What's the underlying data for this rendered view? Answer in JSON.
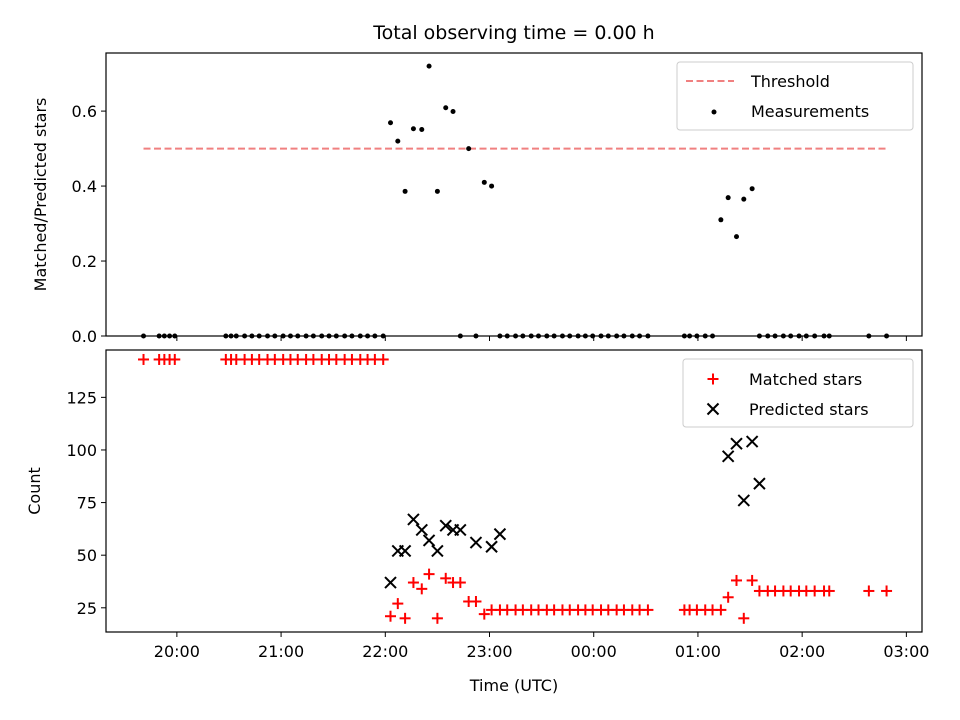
{
  "chart_data": [
    {
      "type": "scatter",
      "title": "Total observing time = 0.00 h",
      "xlabel": "",
      "ylabel": "Matched/Predicted stars",
      "x_unit": "hours after 20:00 UTC",
      "xlim": [
        -0.68,
        7.15
      ],
      "ylim": [
        0,
        0.755
      ],
      "yticks": [
        0.0,
        0.2,
        0.4,
        0.6
      ],
      "ytick_labels": [
        "0.0",
        "0.2",
        "0.4",
        "0.6"
      ],
      "legend": {
        "position": "upper right",
        "entries": [
          "Threshold",
          "Measurements"
        ]
      },
      "threshold": {
        "name": "Threshold",
        "y": 0.5,
        "x_start": -0.32,
        "x_end": 6.83,
        "color": "#f08080",
        "style": "dashed"
      },
      "series": [
        {
          "name": "Measurements",
          "color": "#000000",
          "x": [
            -0.32,
            -0.17,
            -0.12,
            -0.07,
            -0.02,
            0.47,
            0.52,
            0.57,
            0.65,
            0.72,
            0.79,
            0.87,
            0.94,
            1.02,
            1.09,
            1.16,
            1.24,
            1.31,
            1.39,
            1.46,
            1.53,
            1.61,
            1.68,
            1.76,
            1.83,
            1.9,
            1.98,
            2.05,
            2.12,
            2.19,
            2.27,
            2.35,
            2.42,
            2.5,
            2.58,
            2.65,
            2.72,
            2.8,
            2.87,
            2.95,
            3.02,
            3.1,
            3.17,
            3.25,
            3.32,
            3.4,
            3.47,
            3.55,
            3.62,
            3.7,
            3.77,
            3.85,
            3.92,
            3.99,
            4.07,
            4.14,
            4.22,
            4.29,
            4.37,
            4.44,
            4.52,
            4.87,
            4.92,
            4.99,
            5.07,
            5.14,
            5.22,
            5.29,
            5.37,
            5.44,
            5.52,
            5.59,
            5.67,
            5.74,
            5.82,
            5.89,
            5.97,
            6.04,
            6.12,
            6.21,
            6.26,
            6.64,
            6.81
          ],
          "y": [
            0,
            0,
            0,
            0,
            0,
            0,
            0,
            0,
            0,
            0,
            0,
            0,
            0,
            0,
            0,
            0,
            0,
            0,
            0,
            0,
            0,
            0,
            0,
            0,
            0,
            0,
            0,
            0.569,
            0.52,
            0.386,
            0.553,
            0.551,
            0.72,
            0.386,
            0.609,
            0.599,
            0,
            0.5,
            0,
            0.41,
            0.4,
            0,
            0,
            0,
            0,
            0,
            0,
            0,
            0,
            0,
            0,
            0,
            0,
            0,
            0,
            0,
            0,
            0,
            0,
            0,
            0,
            0,
            0,
            0,
            0,
            0,
            0.31,
            0.369,
            0.265,
            0.365,
            0.393,
            0,
            0,
            0,
            0,
            0,
            0,
            0,
            0,
            0,
            0,
            0,
            0
          ]
        }
      ]
    },
    {
      "type": "scatter",
      "title": "",
      "xlabel": "Time (UTC)",
      "ylabel": "Count",
      "x_unit": "hours after 20:00 UTC",
      "xlim": [
        -0.68,
        7.15
      ],
      "ylim": [
        13.5,
        147.5
      ],
      "xticks": [
        0,
        1,
        2,
        3,
        4,
        5,
        6,
        7
      ],
      "xtick_labels": [
        "20:00",
        "21:00",
        "22:00",
        "23:00",
        "00:00",
        "01:00",
        "02:00",
        "03:00"
      ],
      "yticks": [
        25,
        50,
        75,
        100,
        125
      ],
      "ytick_labels": [
        "25",
        "50",
        "75",
        "100",
        "125"
      ],
      "legend": {
        "position": "upper right",
        "entries": [
          "Matched stars",
          "Predicted stars"
        ]
      },
      "series": [
        {
          "name": "Matched stars",
          "marker": "+",
          "color": "#ff0000",
          "x": [
            -0.32,
            -0.17,
            -0.12,
            -0.07,
            -0.02,
            0.47,
            0.52,
            0.57,
            0.65,
            0.72,
            0.79,
            0.87,
            0.94,
            1.02,
            1.09,
            1.16,
            1.24,
            1.31,
            1.39,
            1.46,
            1.53,
            1.61,
            1.68,
            1.76,
            1.83,
            1.9,
            1.98,
            2.05,
            2.12,
            2.19,
            2.27,
            2.35,
            2.42,
            2.5,
            2.58,
            2.65,
            2.72,
            2.8,
            2.87,
            2.95,
            3.02,
            3.1,
            3.17,
            3.25,
            3.32,
            3.4,
            3.47,
            3.55,
            3.62,
            3.7,
            3.77,
            3.85,
            3.92,
            3.99,
            4.07,
            4.14,
            4.22,
            4.29,
            4.37,
            4.44,
            4.52,
            4.87,
            4.92,
            4.99,
            5.07,
            5.14,
            5.22,
            5.29,
            5.37,
            5.44,
            5.52,
            5.59,
            5.67,
            5.74,
            5.82,
            5.89,
            5.97,
            6.04,
            6.12,
            6.21,
            6.26,
            6.64,
            6.81
          ],
          "y": [
            143,
            143,
            143,
            143,
            143,
            143,
            143,
            143,
            143,
            143,
            143,
            143,
            143,
            143,
            143,
            143,
            143,
            143,
            143,
            143,
            143,
            143,
            143,
            143,
            143,
            143,
            143,
            21,
            27,
            20,
            37,
            34,
            41,
            20,
            39,
            37,
            37,
            28,
            28,
            22,
            24,
            24,
            24,
            24,
            24,
            24,
            24,
            24,
            24,
            24,
            24,
            24,
            24,
            24,
            24,
            24,
            24,
            24,
            24,
            24,
            24,
            24,
            24,
            24,
            24,
            24,
            24,
            30,
            38,
            20,
            38,
            33,
            33,
            33,
            33,
            33,
            33,
            33,
            33,
            33,
            33,
            33,
            33
          ]
        },
        {
          "name": "Predicted stars",
          "marker": "x",
          "color": "#000000",
          "x": [
            2.05,
            2.12,
            2.19,
            2.27,
            2.35,
            2.42,
            2.5,
            2.58,
            2.65,
            2.72,
            2.87,
            3.02,
            3.1,
            5.29,
            5.37,
            5.44,
            5.52,
            5.59
          ],
          "y": [
            37,
            52,
            52,
            67,
            62,
            57,
            52,
            64,
            62,
            62,
            56,
            54,
            60,
            97,
            103,
            76,
            104,
            84
          ]
        }
      ]
    }
  ]
}
